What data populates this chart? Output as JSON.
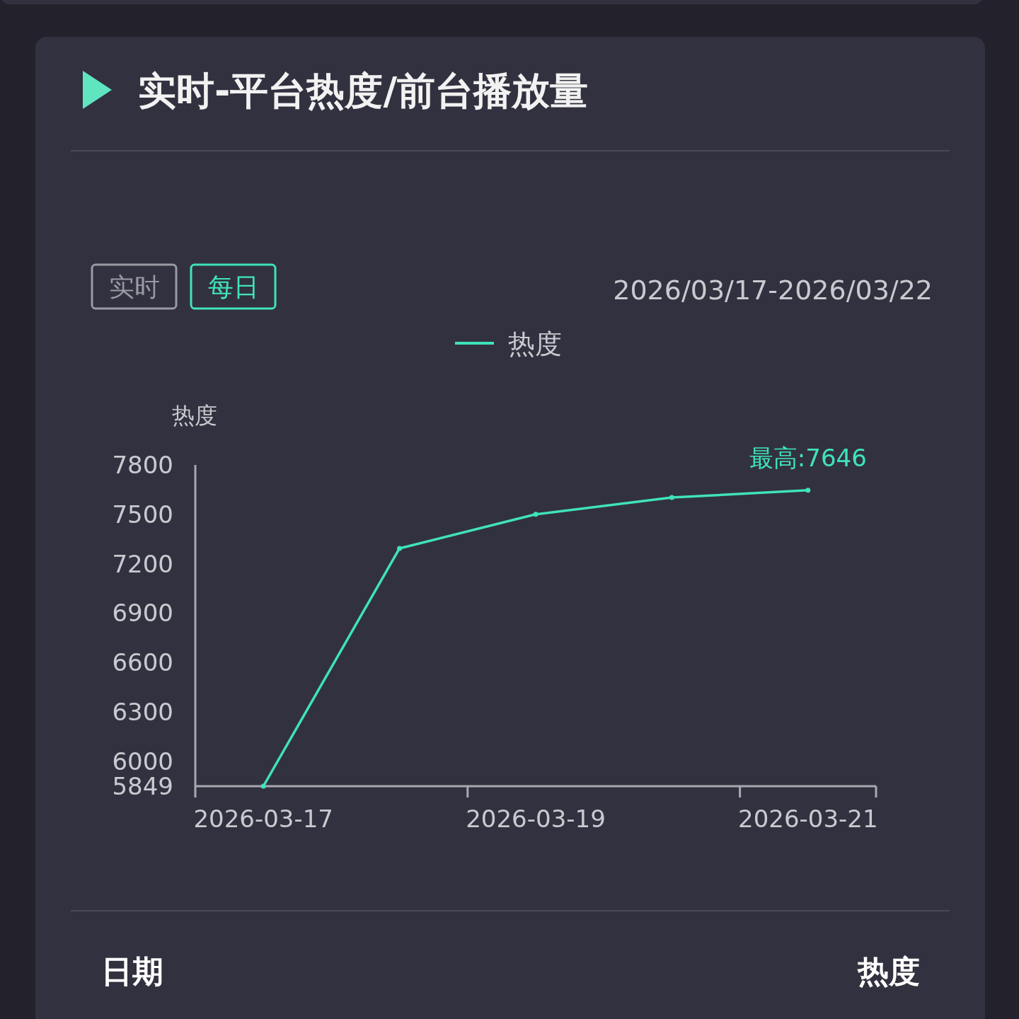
{
  "chart_data": {
    "type": "line",
    "title": "实时-平台热度/前台播放量",
    "ylabel": "热度",
    "categories": [
      "2026-03-17",
      null,
      "2026-03-19",
      null,
      "2026-03-21"
    ],
    "series": [
      {
        "name": "热度",
        "color": "#3fe3bb",
        "values": [
          5849,
          7293,
          7500,
          7602,
          7646
        ]
      }
    ],
    "ylim": [
      5849,
      7800
    ],
    "yticks": [
      5849,
      6000,
      6300,
      6600,
      6900,
      7200,
      7500,
      7800
    ],
    "legend": "top",
    "marker": "circle",
    "line_style": "solid",
    "grid": false,
    "annotations": [
      "实时",
      "每日",
      "2026/03/17-2026/03/22",
      "日期",
      "热度",
      {
        "text": "最高:7646",
        "x": "2026-03-21",
        "y": 7646
      }
    ]
  }
}
